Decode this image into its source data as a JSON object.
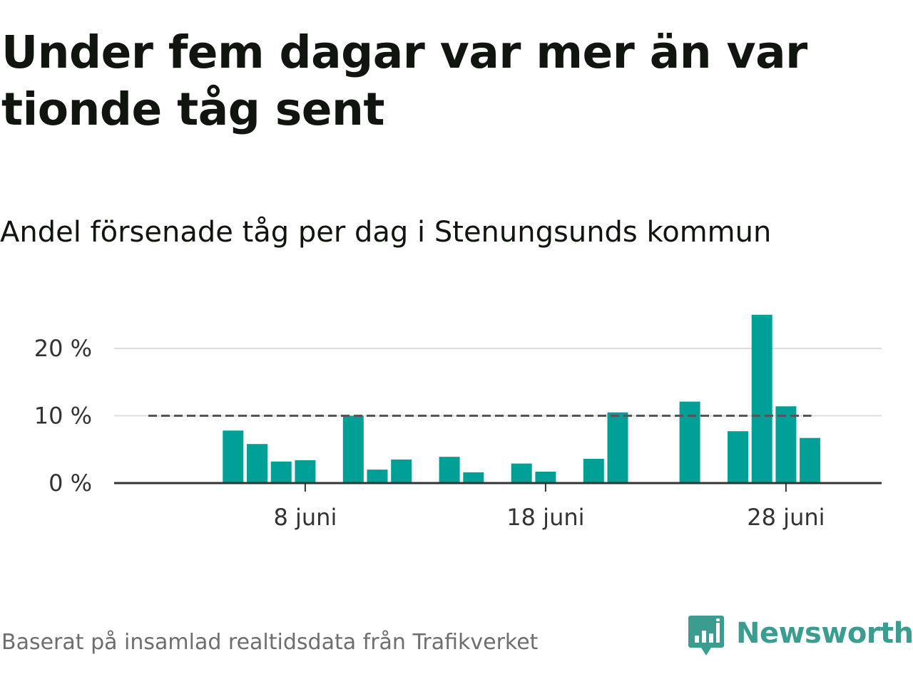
{
  "title": "Under fem dagar var mer än var tionde tåg sent",
  "subtitle": "Andel försenade tåg per dag i Stenungsunds kommun",
  "footer": "Baserat på insamlad realtidsdata från Trafikverket",
  "brand": {
    "name": "Newsworthy",
    "color": "#3a9d8f",
    "icon": "newsworthy-logo-icon"
  },
  "colors": {
    "bar": "#00a096",
    "reference_line": "#555555",
    "gridline": "#dddddd",
    "axis": "#333333"
  },
  "chart_data": {
    "type": "bar",
    "title": "Andel försenade tåg per dag i Stenungsunds kommun",
    "xlabel": "",
    "ylabel": "",
    "x": [
      "1 juni",
      "2 juni",
      "3 juni",
      "4 juni",
      "5 juni",
      "6 juni",
      "7 juni",
      "8 juni",
      "9 juni",
      "10 juni",
      "11 juni",
      "12 juni",
      "13 juni",
      "14 juni",
      "15 juni",
      "16 juni",
      "17 juni",
      "18 juni",
      "19 juni",
      "20 juni",
      "21 juni",
      "22 juni",
      "23 juni",
      "24 juni",
      "25 juni",
      "26 juni",
      "27 juni",
      "28 juni",
      "29 juni"
    ],
    "values": [
      0,
      0,
      0,
      0,
      7.8,
      5.8,
      3.2,
      3.4,
      0,
      10.0,
      2.0,
      3.5,
      0,
      3.9,
      1.6,
      0,
      2.9,
      1.7,
      0,
      3.6,
      10.5,
      0,
      0,
      12.1,
      0,
      7.7,
      25.0,
      11.4,
      6.7
    ],
    "xticks": [
      "8 juni",
      "18 juni",
      "28 juni"
    ],
    "yticks": [
      "0 %",
      "10 %",
      "20 %"
    ],
    "yticks_values": [
      0,
      10,
      20
    ],
    "ylim": [
      0,
      25
    ],
    "reference_line": 10,
    "grid": true,
    "legend": "none"
  }
}
